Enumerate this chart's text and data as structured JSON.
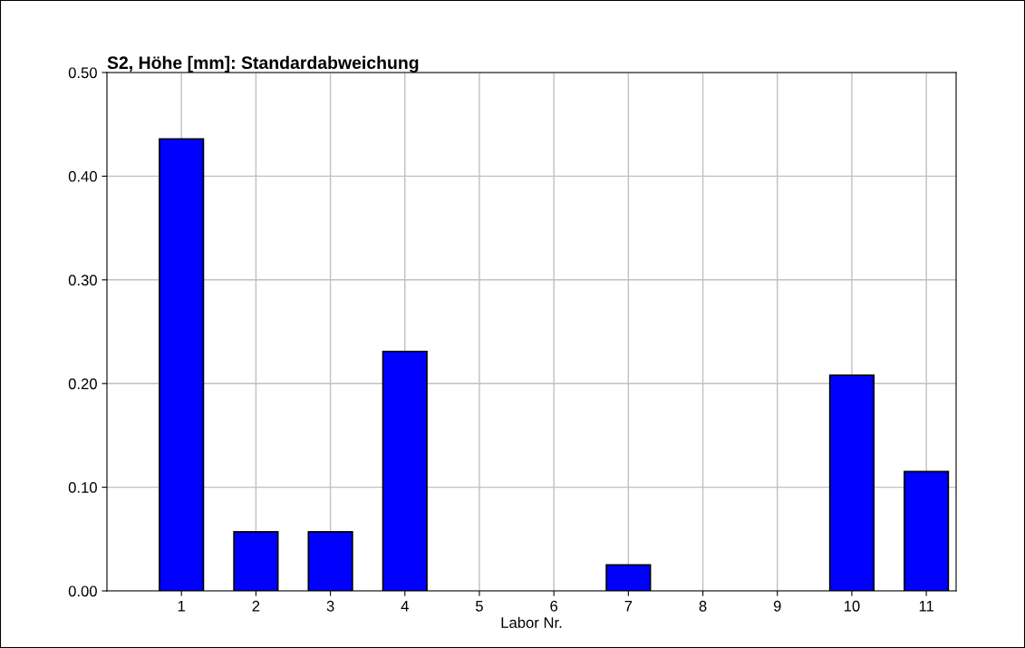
{
  "chart_data": {
    "type": "bar",
    "title": "S2, Höhe [mm]: Standardabweichung",
    "xlabel": "Labor Nr.",
    "categories": [
      "1",
      "2",
      "3",
      "4",
      "5",
      "6",
      "7",
      "8",
      "9",
      "10",
      "11"
    ],
    "values": [
      0.436,
      0.057,
      0.057,
      0.231,
      0,
      0,
      0.025,
      0,
      0,
      0.208,
      0.115
    ],
    "color": "#0000ff",
    "ylim": [
      0,
      0.5
    ],
    "yticks": [
      {
        "value": 0,
        "label": "0.00"
      },
      {
        "value": 0.1,
        "label": "0.10"
      },
      {
        "value": 0.2,
        "label": "0.20"
      },
      {
        "value": 0.3,
        "label": "0.30"
      },
      {
        "value": 0.4,
        "label": "0.40"
      },
      {
        "value": 0.5,
        "label": "0.50"
      }
    ],
    "grid": true
  }
}
